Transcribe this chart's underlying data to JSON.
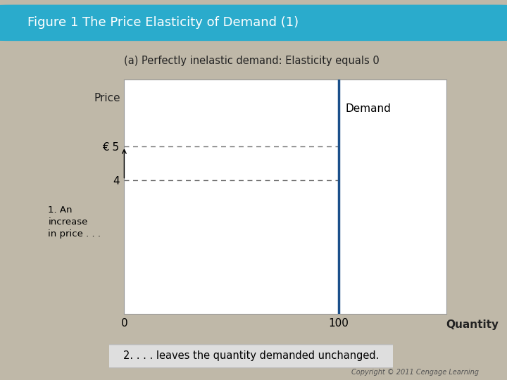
{
  "title": "Figure 1 The Price Elasticity of Demand (1)",
  "subtitle": "(a) Perfectly inelastic demand: Elasticity equals 0",
  "ylabel": "Price",
  "xlabel": "Quantity",
  "demand_label": "Demand",
  "vertical_line_x": 100,
  "y_ticks": [
    4,
    5
  ],
  "y_tick_labels": [
    "4",
    "€ 5"
  ],
  "x_ticks": [
    0,
    100
  ],
  "x_tick_labels": [
    "0",
    "100"
  ],
  "ylim": [
    0,
    7
  ],
  "xlim": [
    0,
    150
  ],
  "price_1": 4,
  "price_2": 5,
  "annotation_1": "1. An\nincrease\nin price . . .",
  "annotation_2": "2. . . . leaves the quantity demanded unchanged.",
  "bg_color": "#bfb8a8",
  "plot_bg": "#f5f5f5",
  "header_color": "#2aabcc",
  "demand_line_color": "#1a4f8a",
  "dotted_line_color": "#777777",
  "title_color": "#ffffff",
  "subtitle_color": "#222222",
  "ylabel_color": "#222222",
  "xlabel_color": "#222222",
  "annotation2_bg": "#dedede",
  "copyright_color": "#555555"
}
